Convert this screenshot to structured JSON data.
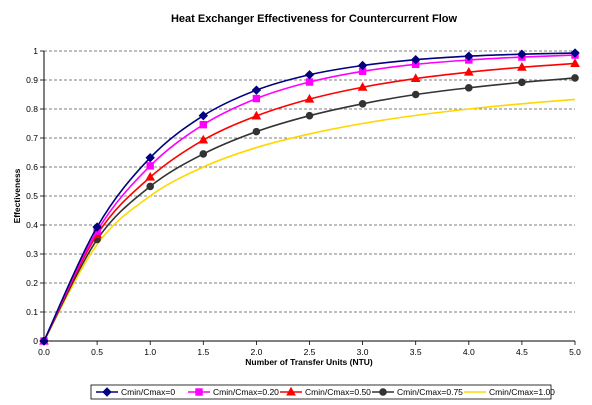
{
  "chart_data": {
    "type": "line",
    "title": "Heat Exchanger Effectiveness for Countercurrent Flow",
    "xlabel": "Number of Transfer Units (NTU)",
    "ylabel": "Effectiveness",
    "xlim": [
      0,
      5
    ],
    "ylim": [
      0,
      1
    ],
    "x_ticks": [
      "0.0",
      "0.5",
      "1.0",
      "1.5",
      "2.0",
      "2.5",
      "3.0",
      "3.5",
      "4.0",
      "4.5",
      "5.0"
    ],
    "y_ticks": [
      "0",
      "0.1",
      "0.2",
      "0.3",
      "0.4",
      "0.5",
      "0.6",
      "0.7",
      "0.8",
      "0.9",
      "1"
    ],
    "grid": "horizontal dashed",
    "legend_position": "bottom",
    "x": [
      0,
      0.5,
      1.0,
      1.5,
      2.0,
      2.5,
      3.0,
      3.5,
      4.0,
      4.5,
      5.0
    ],
    "series": [
      {
        "name": "Cmin/Cmax=0",
        "color": "#000080",
        "marker": "diamond",
        "values": [
          0,
          0.393,
          0.632,
          0.777,
          0.865,
          0.918,
          0.95,
          0.97,
          0.982,
          0.989,
          0.993
        ]
      },
      {
        "name": "Cmin/Cmax=0.20",
        "color": "#ff00ff",
        "marker": "square",
        "values": [
          0,
          0.379,
          0.604,
          0.746,
          0.836,
          0.893,
          0.93,
          0.954,
          0.969,
          0.979,
          0.986
        ]
      },
      {
        "name": "Cmin/Cmax=0.50",
        "color": "#ff0000",
        "marker": "triangle",
        "values": [
          0,
          0.367,
          0.565,
          0.693,
          0.776,
          0.834,
          0.875,
          0.905,
          0.927,
          0.944,
          0.957
        ]
      },
      {
        "name": "Cmin/Cmax=0.75",
        "color": "#333333",
        "marker": "circle",
        "values": [
          0,
          0.35,
          0.533,
          0.645,
          0.722,
          0.777,
          0.818,
          0.85,
          0.873,
          0.892,
          0.907
        ]
      },
      {
        "name": "Cmin/Cmax=1.00",
        "color": "#ffd700",
        "marker": "none",
        "values": [
          0,
          0.333,
          0.5,
          0.6,
          0.667,
          0.714,
          0.75,
          0.778,
          0.8,
          0.818,
          0.833
        ]
      }
    ]
  }
}
